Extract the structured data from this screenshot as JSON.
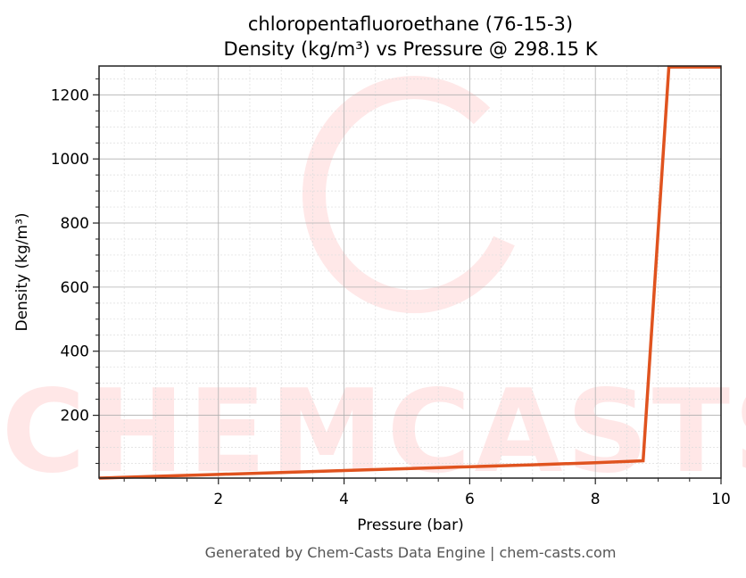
{
  "chart_data": {
    "type": "line",
    "title": "chloropentafluoroethane (76-15-3)",
    "subtitle": "Density (kg/m³) vs Pressure @ 298.15 K",
    "xlabel": "Pressure (bar)",
    "ylabel": "Density (kg/m³)",
    "xlim": [
      0.1,
      10
    ],
    "ylim": [
      4,
      1290
    ],
    "xticks": [
      2,
      4,
      6,
      8,
      10
    ],
    "yticks": [
      200,
      400,
      600,
      800,
      1000,
      1200
    ],
    "grid": true,
    "series": [
      {
        "color": "#e0531f",
        "x": [
          0.1,
          1,
          2,
          3,
          4,
          5,
          6,
          7,
          8,
          8.76,
          9.17,
          10
        ],
        "y": [
          4,
          9.5,
          15.5,
          21.5,
          27.5,
          33.5,
          39.5,
          45.5,
          52,
          58,
          1287,
          1287
        ]
      }
    ]
  },
  "watermark": "CHEMCASTS",
  "footer": "Generated by Chem-Casts Data Engine | chem-casts.com"
}
